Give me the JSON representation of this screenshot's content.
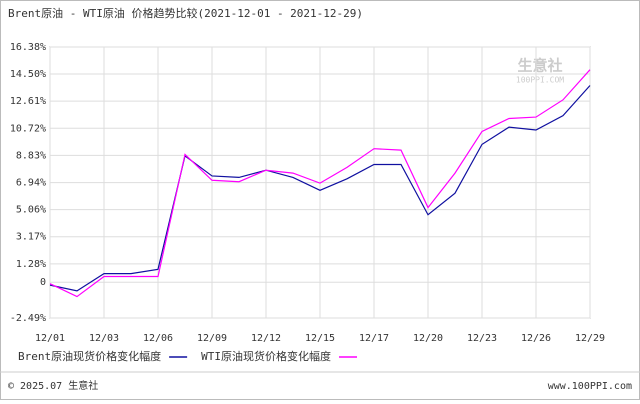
{
  "chart_data": {
    "type": "line",
    "title": "Brent原油 - WTI原油 价格趋势比较(2021-12-01 - 2021-12-29)",
    "categories": [
      "12/01",
      null,
      "12/03",
      null,
      "12/06",
      null,
      "12/09",
      null,
      "12/12",
      null,
      "12/15",
      null,
      "12/17",
      null,
      "12/20",
      null,
      "12/23",
      null,
      "12/26",
      null,
      "12/29"
    ],
    "series": [
      {
        "name": "Brent原油现货价格变化幅度",
        "color": "#1010a0",
        "values": [
          -0.2,
          -0.6,
          0.6,
          0.6,
          0.9,
          8.8,
          7.4,
          7.3,
          7.8,
          7.3,
          6.4,
          7.2,
          8.2,
          8.2,
          4.7,
          6.2,
          9.6,
          10.8,
          10.6,
          11.6,
          13.7
        ]
      },
      {
        "name": "WTI原油现货价格变化幅度",
        "color": "#ff00ff",
        "values": [
          -0.1,
          -1.0,
          0.4,
          0.4,
          0.4,
          8.9,
          7.1,
          7.0,
          7.8,
          7.6,
          6.9,
          8.0,
          9.3,
          9.2,
          5.2,
          7.6,
          10.5,
          11.4,
          11.5,
          12.7,
          14.8
        ]
      }
    ],
    "ylim": [
      -2.49,
      16.38
    ],
    "yticks": [
      {
        "value": 16.38,
        "label": "16.38%"
      },
      {
        "value": 14.5,
        "label": "14.50%"
      },
      {
        "value": 12.61,
        "label": "12.61%"
      },
      {
        "value": 10.72,
        "label": "10.72%"
      },
      {
        "value": 8.83,
        "label": "8.83%"
      },
      {
        "value": 6.94,
        "label": "6.94%"
      },
      {
        "value": 5.06,
        "label": "5.06%"
      },
      {
        "value": 3.17,
        "label": "3.17%"
      },
      {
        "value": 1.28,
        "label": "1.28%"
      },
      0,
      {
        "value": -2.49,
        "label": "-2.49%"
      }
    ],
    "grid": true,
    "watermark": {
      "name": "生意社",
      "site": "100PPI.COM"
    },
    "footer": {
      "left": "© 2025.07 生意社",
      "right": "www.100PPI.com"
    }
  }
}
